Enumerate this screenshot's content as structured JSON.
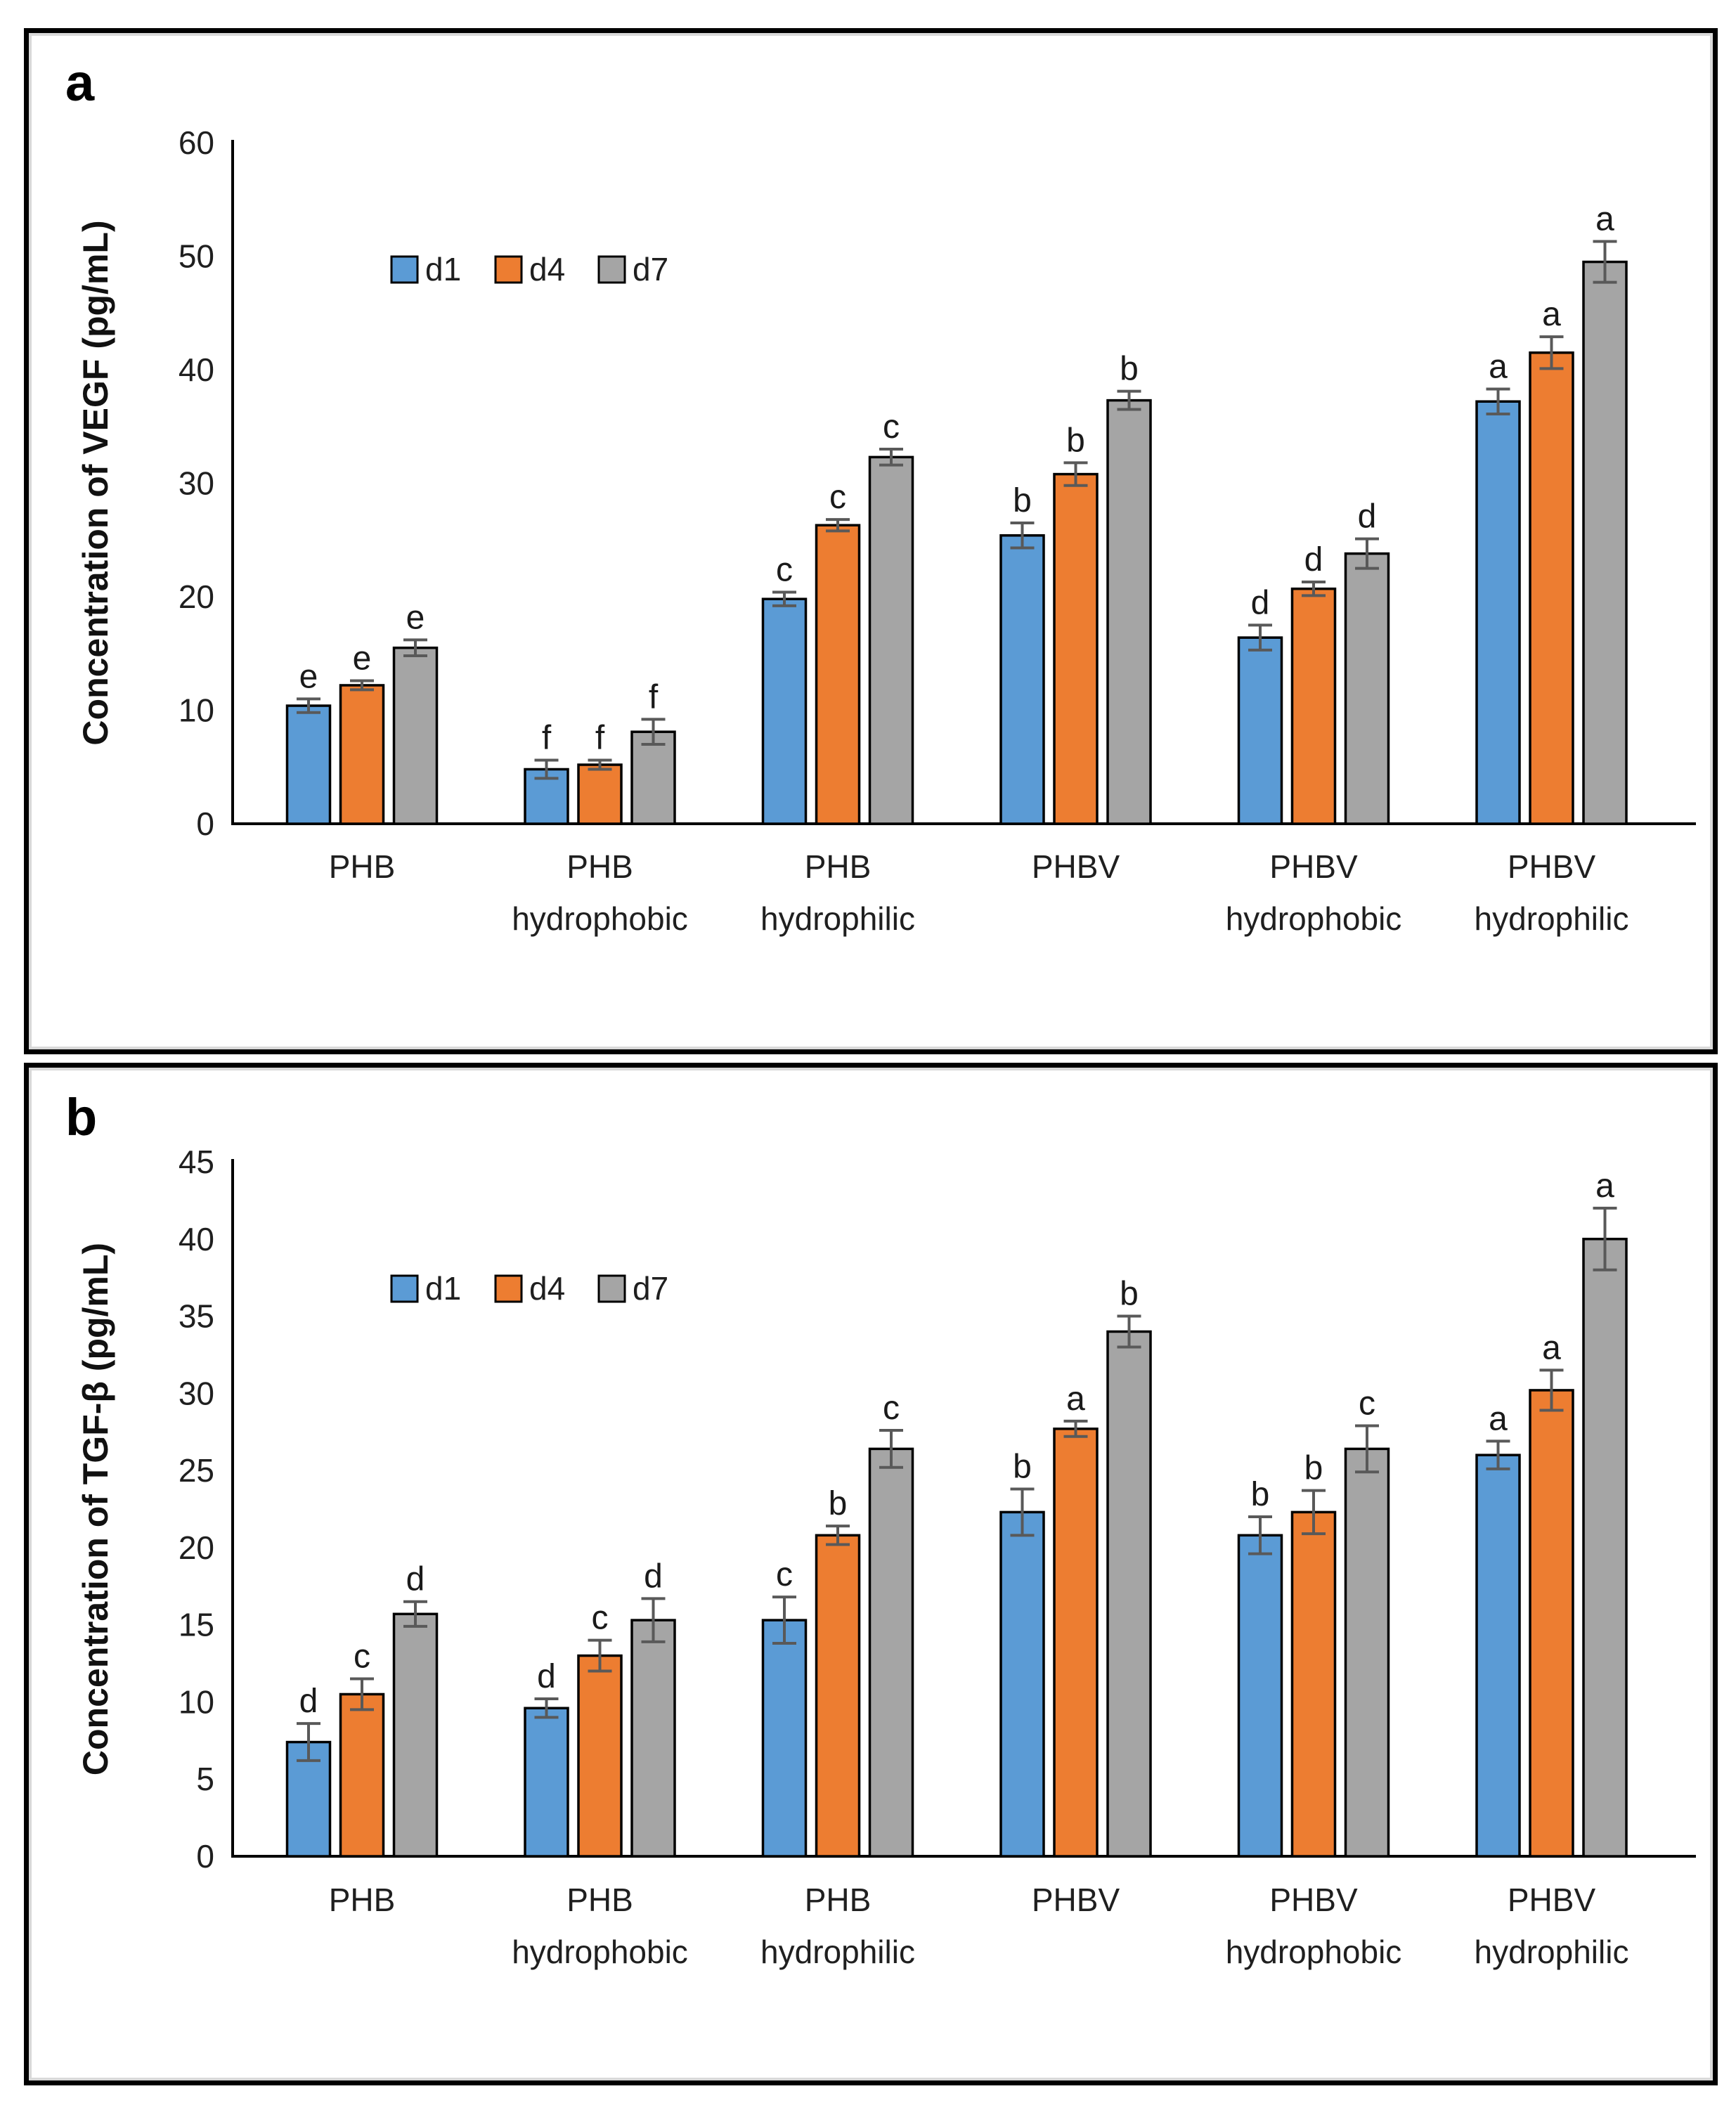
{
  "colors": {
    "series_d1": "#5B9BD5",
    "series_d4": "#ED7D31",
    "series_d7": "#A5A5A5",
    "bar_border": "#000000",
    "error_bar": "#595959",
    "axis_line": "#000000",
    "tick_text": "#1f1f1f",
    "letter_text": "#1a1a1a",
    "panel_frame": "#000000",
    "panel_inner_frame": "#d9d9d9"
  },
  "legend": {
    "labels": [
      "d1",
      "d4",
      "d7"
    ]
  },
  "chart_data": [
    {
      "type": "bar",
      "panel_label": "a",
      "title": "",
      "xlabel": "",
      "ylabel": "Concentration of VEGF (pg/mL)",
      "ylim": [
        0,
        60
      ],
      "ytick_step": 10,
      "yticks": [
        0,
        10,
        20,
        30,
        40,
        50,
        60
      ],
      "grid": false,
      "legend_position": "inside-top-left",
      "legend_labels": [
        "d1",
        "d4",
        "d7"
      ],
      "categories": [
        "PHB",
        "PHB hydrophobic",
        "PHB hydrophilic",
        "PHBV",
        "PHBV hydrophobic",
        "PHBV hydrophilic"
      ],
      "category_label_lines": [
        [
          "PHB"
        ],
        [
          "PHB",
          "hydrophobic"
        ],
        [
          "PHB",
          "hydrophilic"
        ],
        [
          "PHBV"
        ],
        [
          "PHBV",
          "hydrophobic"
        ],
        [
          "PHBV",
          "hydrophilic"
        ]
      ],
      "series": [
        {
          "name": "d1",
          "color": "#5B9BD5",
          "values": [
            10.4,
            4.8,
            19.8,
            25.4,
            16.4,
            37.2
          ],
          "errors": [
            0.6,
            0.8,
            0.6,
            1.1,
            1.1,
            1.1
          ],
          "letters": [
            "e",
            "f",
            "c",
            "b",
            "d",
            "a"
          ]
        },
        {
          "name": "d4",
          "color": "#ED7D31",
          "values": [
            12.2,
            5.2,
            26.3,
            30.8,
            20.7,
            41.5
          ],
          "errors": [
            0.4,
            0.4,
            0.5,
            1.0,
            0.6,
            1.4
          ],
          "letters": [
            "e",
            "f",
            "c",
            "b",
            "d",
            "a"
          ]
        },
        {
          "name": "d7",
          "color": "#A5A5A5",
          "values": [
            15.5,
            8.1,
            32.3,
            37.3,
            23.8,
            49.5
          ],
          "errors": [
            0.7,
            1.1,
            0.7,
            0.8,
            1.3,
            1.8
          ],
          "letters": [
            "e",
            "f",
            "c",
            "b",
            "d",
            "a"
          ]
        }
      ]
    },
    {
      "type": "bar",
      "panel_label": "b",
      "title": "",
      "xlabel": "",
      "ylabel": "Concentration of TGF-β (pg/mL)",
      "ylim": [
        0,
        45
      ],
      "ytick_step": 5,
      "yticks": [
        0,
        5,
        10,
        15,
        20,
        25,
        30,
        35,
        40,
        45
      ],
      "grid": false,
      "legend_position": "inside-top-left",
      "legend_labels": [
        "d1",
        "d4",
        "d7"
      ],
      "categories": [
        "PHB",
        "PHB hydrophobic",
        "PHB hydrophilic",
        "PHBV",
        "PHBV hydrophobic",
        "PHBV hydrophilic"
      ],
      "category_label_lines": [
        [
          "PHB"
        ],
        [
          "PHB",
          "hydrophobic"
        ],
        [
          "PHB",
          "hydrophilic"
        ],
        [
          "PHBV"
        ],
        [
          "PHBV",
          "hydrophobic"
        ],
        [
          "PHBV",
          "hydrophilic"
        ]
      ],
      "series": [
        {
          "name": "d1",
          "color": "#5B9BD5",
          "values": [
            7.4,
            9.6,
            15.3,
            22.3,
            20.8,
            26.0
          ],
          "errors": [
            1.2,
            0.6,
            1.5,
            1.5,
            1.2,
            0.9
          ],
          "letters": [
            "d",
            "d",
            "c",
            "b",
            "b",
            "a"
          ]
        },
        {
          "name": "d4",
          "color": "#ED7D31",
          "values": [
            10.5,
            13.0,
            20.8,
            27.7,
            22.3,
            30.2
          ],
          "errors": [
            1.0,
            1.0,
            0.6,
            0.5,
            1.4,
            1.3
          ],
          "letters": [
            "c",
            "c",
            "b",
            "a",
            "b",
            "a"
          ]
        },
        {
          "name": "d7",
          "color": "#A5A5A5",
          "values": [
            15.7,
            15.3,
            26.4,
            34.0,
            26.4,
            40.0
          ],
          "errors": [
            0.8,
            1.4,
            1.2,
            1.0,
            1.5,
            2.0
          ],
          "letters": [
            "d",
            "d",
            "c",
            "b",
            "c",
            "a"
          ]
        }
      ]
    }
  ]
}
